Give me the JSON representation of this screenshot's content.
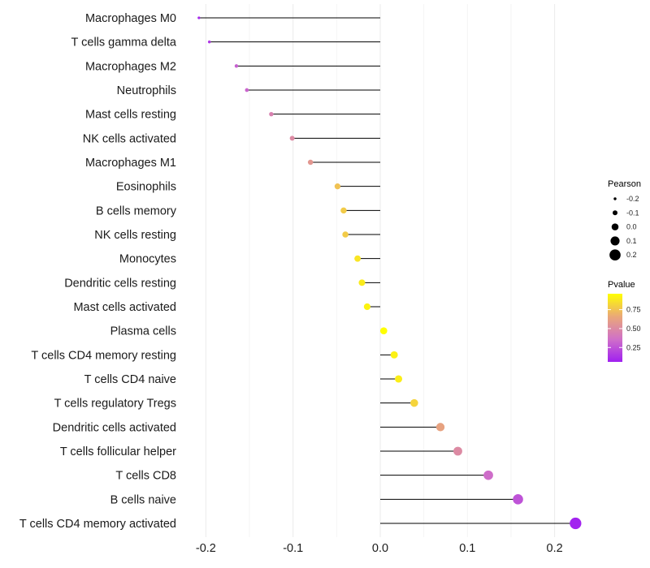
{
  "chart_data": {
    "type": "lollipop",
    "title": "",
    "xlabel": "",
    "ylabel": "",
    "xlim": [
      -0.215,
      0.235
    ],
    "xticks": [
      "-0.2",
      "-0.1",
      "0.0",
      "0.1",
      "0.2"
    ],
    "xtick_values": [
      -0.2,
      -0.1,
      0.0,
      0.1,
      0.2
    ],
    "grid": true,
    "categories": [
      "Macrophages M0",
      "T cells gamma delta",
      "Macrophages M2",
      "Neutrophils",
      "Mast cells resting",
      "NK cells activated",
      "Macrophages M1",
      "Eosinophils",
      "B cells memory",
      "NK cells resting",
      "Monocytes",
      "Dendritic cells resting",
      "Mast cells activated",
      "Plasma cells",
      "T cells CD4 memory resting",
      "T cells CD4 naive",
      "T cells regulatory  Tregs",
      "Dendritic cells activated",
      "T cells follicular helper",
      "T cells CD8",
      "B cells naive",
      "T cells CD4 memory activated"
    ],
    "pearson": [
      -0.208,
      -0.196,
      -0.165,
      -0.153,
      -0.125,
      -0.101,
      -0.08,
      -0.049,
      -0.042,
      -0.04,
      -0.026,
      -0.021,
      -0.015,
      0.004,
      0.016,
      0.021,
      0.039,
      0.069,
      0.089,
      0.124,
      0.158,
      0.224
    ],
    "pvalue": [
      0.1,
      0.15,
      0.3,
      0.32,
      0.45,
      0.5,
      0.57,
      0.75,
      0.78,
      0.78,
      0.87,
      0.89,
      0.92,
      0.96,
      0.91,
      0.9,
      0.81,
      0.63,
      0.5,
      0.35,
      0.25,
      0.07
    ],
    "legend": {
      "size_title": "Pearson",
      "size_labels": [
        "-0.2",
        "-0.1",
        "0.0",
        "0.1",
        "0.2"
      ],
      "size_values": [
        -0.2,
        -0.1,
        0.0,
        0.1,
        0.2
      ],
      "color_title": "Pvalue",
      "color_labels": [
        "0.75",
        "0.50",
        "0.25"
      ],
      "color_values": [
        0.75,
        0.5,
        0.25
      ],
      "color_range": [
        0.06,
        0.96
      ],
      "colors": [
        "#a020f0",
        "#d070c8",
        "#eaa878",
        "#ffff00"
      ],
      "placement": "right"
    }
  }
}
